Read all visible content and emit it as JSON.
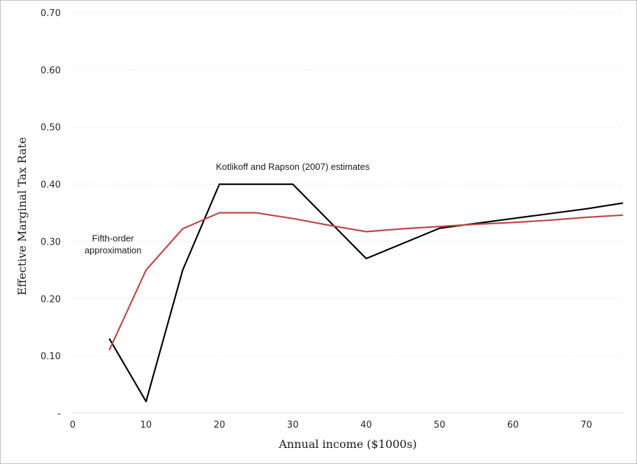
{
  "chart_data": {
    "type": "line",
    "title": "",
    "xlabel": "Annual income ($1000s)",
    "ylabel": "Effective Marginal Tax Rate",
    "xlim": [
      0,
      75
    ],
    "ylim": [
      0,
      0.7
    ],
    "x_ticks": [
      0,
      10,
      20,
      30,
      40,
      50,
      60,
      70
    ],
    "x_tick_labels": [
      "0",
      "10",
      "20",
      "30",
      "40",
      "50",
      "60",
      "70"
    ],
    "y_ticks": [
      0,
      0.1,
      0.2,
      0.3,
      0.4,
      0.5,
      0.6,
      0.7
    ],
    "y_tick_labels": [
      "-",
      "0.10",
      "0.20",
      "0.30",
      "0.40",
      "0.50",
      "0.60",
      "0.70"
    ],
    "grid": true,
    "legend": "none",
    "annotations": [
      {
        "text_lines": [
          "Kotlikoff and Rapson (2007) estimates"
        ],
        "anchor": [
          30,
          0.425
        ]
      },
      {
        "text_lines": [
          "Fifth-order",
          "approximation"
        ],
        "anchor": [
          5.5,
          0.3
        ]
      }
    ],
    "series": [
      {
        "color": "#000000",
        "x": [
          5,
          10,
          15,
          20,
          25,
          30,
          40,
          50,
          60,
          70,
          75
        ],
        "y": [
          0.13,
          0.02,
          0.25,
          0.4,
          0.4,
          0.4,
          0.27,
          0.323,
          0.34,
          0.357,
          0.367
        ]
      },
      {
        "color": "#b94a48",
        "x": [
          5,
          10,
          15,
          20,
          25,
          30,
          35,
          40,
          45,
          50,
          55,
          60,
          65,
          70,
          75
        ],
        "y": [
          0.11,
          0.25,
          0.322,
          0.35,
          0.35,
          0.34,
          0.328,
          0.317,
          0.322,
          0.326,
          0.33,
          0.333,
          0.337,
          0.342,
          0.346
        ]
      }
    ]
  }
}
